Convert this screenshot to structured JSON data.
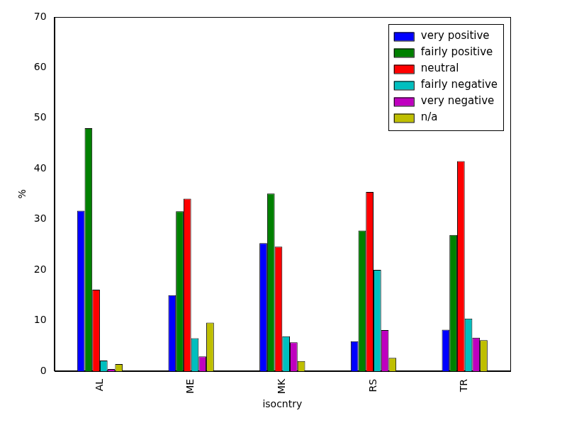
{
  "chart_data": {
    "type": "bar",
    "categories": [
      "AL",
      "ME",
      "MK",
      "RS",
      "TR"
    ],
    "x_label": "isocntry",
    "y_label": "%",
    "series": [
      {
        "name": "very positive",
        "color": "#0000ff",
        "values": [
          31.7,
          15.0,
          25.3,
          5.9,
          8.2
        ]
      },
      {
        "name": "fairly positive",
        "color": "#008000",
        "values": [
          48.0,
          31.6,
          35.1,
          27.8,
          26.9
        ]
      },
      {
        "name": "neutral",
        "color": "#ff0000",
        "values": [
          16.1,
          34.1,
          24.6,
          35.4,
          41.5
        ]
      },
      {
        "name": "fairly negative",
        "color": "#00bfbf",
        "values": [
          2.1,
          6.5,
          6.9,
          20.0,
          10.4
        ]
      },
      {
        "name": "very negative",
        "color": "#bf00bf",
        "values": [
          0.4,
          2.9,
          5.7,
          8.1,
          6.6
        ]
      },
      {
        "name": "n/a",
        "color": "#bfbf00",
        "values": [
          1.4,
          9.6,
          2.0,
          2.6,
          6.1
        ]
      }
    ],
    "ylim": [
      0,
      70
    ],
    "yticks": [
      0,
      10,
      20,
      30,
      40,
      50,
      60,
      70
    ],
    "grid": false,
    "legend": "upper right"
  }
}
